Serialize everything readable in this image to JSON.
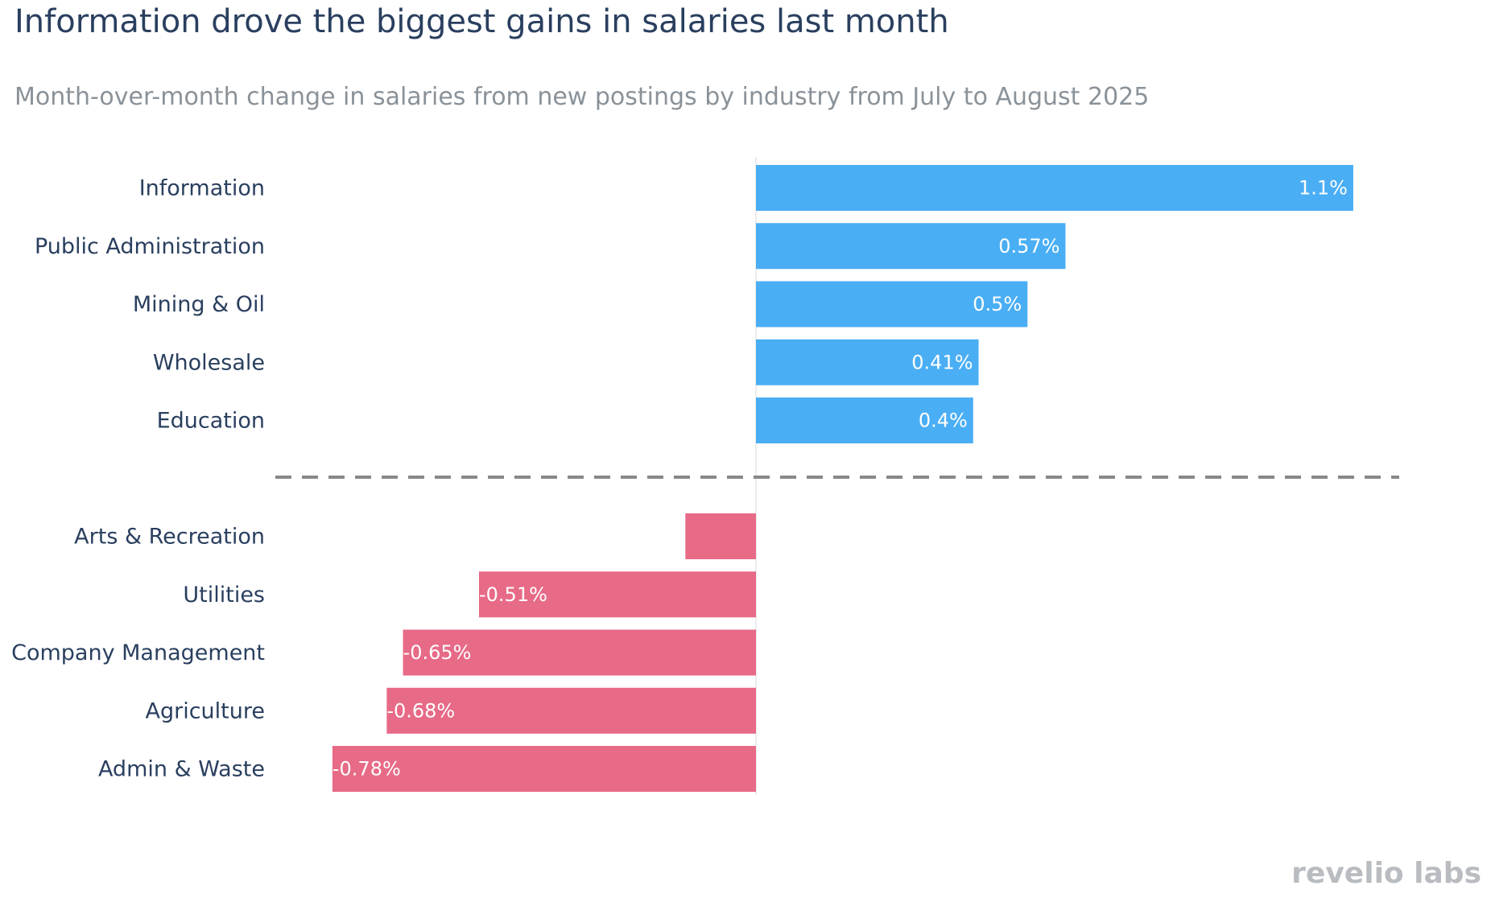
{
  "chart_data": {
    "type": "bar",
    "orientation": "horizontal",
    "title": "Information drove the biggest gains in salaries last month",
    "subtitle": "Month-over-month change in salaries from new postings by industry from July to August 2025",
    "xlabel": "",
    "ylabel": "",
    "xlim": [
      -0.8,
      1.2
    ],
    "positive_color": "#4aaef4",
    "negative_color": "#e76a87",
    "divider_color": "#888888",
    "gainers": [
      {
        "category": "Information",
        "value": 1.1,
        "label": "1.1%"
      },
      {
        "category": "Public Administration",
        "value": 0.57,
        "label": "0.57%"
      },
      {
        "category": "Mining & Oil",
        "value": 0.5,
        "label": "0.5%"
      },
      {
        "category": "Wholesale",
        "value": 0.41,
        "label": "0.41%"
      },
      {
        "category": "Education",
        "value": 0.4,
        "label": "0.4%"
      }
    ],
    "decliners": [
      {
        "category": "Arts & Recreation",
        "value": -0.13,
        "label": ""
      },
      {
        "category": "Utilities",
        "value": -0.51,
        "label": "-0.51%"
      },
      {
        "category": "Company Management",
        "value": -0.65,
        "label": "-0.65%"
      },
      {
        "category": "Agriculture",
        "value": -0.68,
        "label": "-0.68%"
      },
      {
        "category": "Admin & Waste",
        "value": -0.78,
        "label": "-0.78%"
      }
    ]
  },
  "branding": {
    "logo_text": "revelio labs"
  }
}
